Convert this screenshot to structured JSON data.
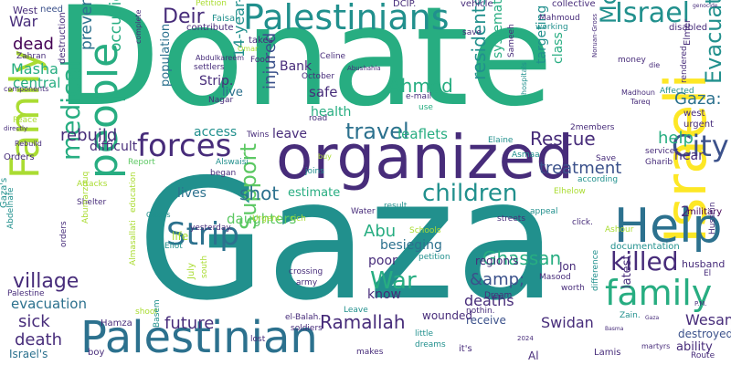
{
  "palette": {
    "darkPurple": "#440154",
    "purple": "#472c7a",
    "indigo": "#3b518b",
    "blue": "#2c718e",
    "teal": "#21908d",
    "green": "#27ad81",
    "lightGreen": "#5cc863",
    "lime": "#aadc32",
    "yellow": "#fde725"
  },
  "words": [
    {
      "text": "Gaza",
      "color": "teal"
    },
    {
      "text": "Donate",
      "color": "green"
    },
    {
      "text": "organized",
      "color": "purple"
    },
    {
      "text": "Israeli",
      "color": "yellow"
    },
    {
      "text": "Palestinian",
      "color": "blue"
    },
    {
      "text": "Palestinians",
      "color": "teal"
    },
    {
      "text": "people",
      "color": "green"
    },
    {
      "text": "Family",
      "color": "lime"
    },
    {
      "text": "Help",
      "color": "blue"
    },
    {
      "text": "forces",
      "color": "purple"
    },
    {
      "text": "Strip",
      "color": "blue"
    },
    {
      "text": "family",
      "color": "green"
    },
    {
      "text": "medical",
      "color": "green"
    },
    {
      "text": "killed",
      "color": "purple"
    },
    {
      "text": "Israel",
      "color": "teal"
    },
    {
      "text": "Mohammed",
      "color": "teal"
    },
    {
      "text": "children",
      "color": "teal"
    },
    {
      "text": "City",
      "color": "indigo"
    },
    {
      "text": "War",
      "color": "green"
    },
    {
      "text": "Support",
      "color": "lightGreen"
    },
    {
      "text": "travel",
      "color": "blue"
    },
    {
      "text": "Evacuate",
      "color": "teal"
    },
    {
      "text": "village",
      "color": "purple"
    },
    {
      "text": "Ghassan",
      "color": "green"
    },
    {
      "text": "Ramallah",
      "color": "purple"
    },
    {
      "text": "Rescue",
      "color": "purple"
    },
    {
      "text": "residents",
      "color": "teal"
    },
    {
      "text": "Ahmed",
      "color": "green"
    },
    {
      "text": "Deir",
      "color": "purple"
    },
    {
      "text": "sick",
      "color": "purple"
    },
    {
      "text": "death",
      "color": "purple"
    },
    {
      "text": "shot",
      "color": "blue"
    },
    {
      "text": "future",
      "color": "purple"
    },
    {
      "text": "Abu",
      "color": "green"
    },
    {
      "text": "treatment",
      "color": "indigo"
    },
    {
      "text": "help",
      "color": "green"
    },
    {
      "text": "injured",
      "color": "indigo"
    },
    {
      "text": "rebuild",
      "color": "purple"
    },
    {
      "text": "Gaza:",
      "color": "blue"
    },
    {
      "text": "dead",
      "color": "darkPurple"
    },
    {
      "text": "War",
      "color": "purple"
    },
    {
      "text": "preventing",
      "color": "blue"
    },
    {
      "text": "occupied",
      "color": "green"
    },
    {
      "text": "&amp;",
      "color": "indigo"
    },
    {
      "text": "Swidan",
      "color": "purple"
    },
    {
      "text": "Wesam",
      "color": "purple"
    },
    {
      "text": "evacuation",
      "color": "blue"
    },
    {
      "text": "Masha",
      "color": "green"
    },
    {
      "text": "central",
      "color": "green"
    },
    {
      "text": "14-year-old",
      "color": "teal"
    },
    {
      "text": "safe",
      "color": "purple"
    },
    {
      "text": "Bank",
      "color": "purple"
    },
    {
      "text": "leaflets",
      "color": "green"
    },
    {
      "text": "leave",
      "color": "purple"
    },
    {
      "text": "systematic",
      "color": "green"
    },
    {
      "text": "class",
      "color": "green"
    },
    {
      "text": "targeting",
      "color": "teal"
    },
    {
      "text": "near",
      "color": "purple"
    },
    {
      "text": "2",
      "color": "purple"
    },
    {
      "text": "deaths",
      "color": "purple"
    },
    {
      "text": "besieging",
      "color": "blue"
    },
    {
      "text": "poor",
      "color": "purple"
    },
    {
      "text": "know",
      "color": "purple"
    },
    {
      "text": "daughters",
      "color": "lightGreen"
    },
    {
      "text": "lives",
      "color": "blue"
    },
    {
      "text": "population",
      "color": "blue"
    },
    {
      "text": "difficult",
      "color": "purple"
    },
    {
      "text": "access",
      "color": "teal"
    },
    {
      "text": "Strip.",
      "color": "purple"
    },
    {
      "text": "live",
      "color": "blue"
    },
    {
      "text": "health",
      "color": "green"
    },
    {
      "text": "estimate",
      "color": "green"
    },
    {
      "text": "latest",
      "color": "purple"
    },
    {
      "text": "receive",
      "color": "indigo"
    },
    {
      "text": "wounded",
      "color": "purple"
    },
    {
      "text": "ability",
      "color": "purple"
    },
    {
      "text": "destroyed",
      "color": "indigo"
    },
    {
      "text": "region's",
      "color": "purple"
    },
    {
      "text": "Jon",
      "color": "purple"
    },
    {
      "text": "West",
      "color": "purple"
    },
    {
      "text": "Israel's",
      "color": "blue"
    },
    {
      "text": "boy",
      "color": "purple"
    },
    {
      "text": "Hamza",
      "color": "purple"
    },
    {
      "text": "it's",
      "color": "purple"
    },
    {
      "text": "Al",
      "color": "purple"
    },
    {
      "text": "Lamis",
      "color": "purple"
    },
    {
      "text": "documentation",
      "color": "teal"
    },
    {
      "text": "military",
      "color": "darkPurple"
    },
    {
      "text": "husband",
      "color": "purple"
    },
    {
      "text": "Elmer",
      "color": "purple"
    },
    {
      "text": "collective",
      "color": "purple"
    },
    {
      "text": "disabled",
      "color": "purple"
    },
    {
      "text": "vehicle",
      "color": "purple"
    },
    {
      "text": "Petition",
      "color": "lime"
    },
    {
      "text": "DCIP.",
      "color": "purple"
    },
    {
      "text": "need",
      "color": "indigo"
    },
    {
      "text": "Faisal",
      "color": "teal"
    },
    {
      "text": "contribute",
      "color": "purple"
    },
    {
      "text": "takes",
      "color": "purple"
    },
    {
      "text": "Celine",
      "color": "purple"
    },
    {
      "text": "October",
      "color": "purple"
    },
    {
      "text": "Food",
      "color": "purple"
    },
    {
      "text": "Mahmoud",
      "color": "purple"
    },
    {
      "text": "working",
      "color": "teal"
    },
    {
      "text": "Sameeh",
      "color": "purple"
    },
    {
      "text": "money",
      "color": "purple"
    },
    {
      "text": "die",
      "color": "purple"
    },
    {
      "text": "Madhoun",
      "color": "purple"
    },
    {
      "text": "Tareq",
      "color": "purple"
    },
    {
      "text": "Affected",
      "color": "teal"
    },
    {
      "text": "rendered",
      "color": "purple"
    },
    {
      "text": "west",
      "color": "purple"
    },
    {
      "text": "urgent",
      "color": "purple"
    },
    {
      "text": "services",
      "color": "purple"
    },
    {
      "text": "Gharib",
      "color": "purple"
    },
    {
      "text": "Hussein",
      "color": "purple"
    },
    {
      "text": "2members",
      "color": "purple"
    },
    {
      "text": "Elaine",
      "color": "teal"
    },
    {
      "text": "hospitals",
      "color": "teal"
    },
    {
      "text": "road",
      "color": "purple"
    },
    {
      "text": "use",
      "color": "green"
    },
    {
      "text": "e-mail",
      "color": "purple"
    },
    {
      "text": "Twins",
      "color": "purple"
    },
    {
      "text": "Report",
      "color": "lightGreen"
    },
    {
      "text": "Alswaisi",
      "color": "teal"
    },
    {
      "text": "began",
      "color": "purple"
    },
    {
      "text": "joins",
      "color": "teal"
    },
    {
      "text": "buy",
      "color": "lime"
    },
    {
      "text": "Asmaa",
      "color": "teal"
    },
    {
      "text": "Save",
      "color": "purple"
    },
    {
      "text": "according",
      "color": "teal"
    },
    {
      "text": "Ashour",
      "color": "lime"
    },
    {
      "text": "Elhelow",
      "color": "lime"
    },
    {
      "text": "appeal",
      "color": "teal"
    },
    {
      "text": "streets",
      "color": "purple"
    },
    {
      "text": "click.",
      "color": "purple"
    },
    {
      "text": "Schools",
      "color": "lime"
    },
    {
      "text": "result",
      "color": "teal"
    },
    {
      "text": "Water",
      "color": "purple"
    },
    {
      "text": "petition",
      "color": "teal"
    },
    {
      "text": "rich",
      "color": "lime"
    },
    {
      "text": "Urgent",
      "color": "lime"
    },
    {
      "text": "yesterday.",
      "color": "purple"
    },
    {
      "text": "life",
      "color": "lime"
    },
    {
      "text": "Eliot",
      "color": "teal"
    },
    {
      "text": "Shelter",
      "color": "purple"
    },
    {
      "text": "Attacks",
      "color": "lime"
    },
    {
      "text": "education",
      "color": "lime"
    },
    {
      "text": "Abumarzouq",
      "color": "lime"
    },
    {
      "text": "Almasallati",
      "color": "lime"
    },
    {
      "text": "July",
      "color": "lime"
    },
    {
      "text": "south",
      "color": "lime"
    },
    {
      "text": "army",
      "color": "purple"
    },
    {
      "text": "crossing",
      "color": "purple"
    },
    {
      "text": "shoot",
      "color": "lime"
    },
    {
      "text": "Leave",
      "color": "teal"
    },
    {
      "text": "el-Balah.",
      "color": "purple"
    },
    {
      "text": "soldiers",
      "color": "purple"
    },
    {
      "text": "Dream",
      "color": "purple"
    },
    {
      "text": "nothin.",
      "color": "purple"
    },
    {
      "text": "Zain.",
      "color": "teal"
    },
    {
      "text": "Masood",
      "color": "purple"
    },
    {
      "text": "worth",
      "color": "purple"
    },
    {
      "text": "dreams",
      "color": "teal"
    },
    {
      "text": "little",
      "color": "teal"
    },
    {
      "text": "makes",
      "color": "purple"
    },
    {
      "text": "lost",
      "color": "purple"
    },
    {
      "text": "Basem",
      "color": "teal"
    },
    {
      "text": "difference",
      "color": "teal"
    },
    {
      "text": "martyrs",
      "color": "purple"
    },
    {
      "text": "Route",
      "color": "purple"
    },
    {
      "text": "Palestine",
      "color": "purple"
    },
    {
      "text": "Orders",
      "color": "purple"
    },
    {
      "text": "Gaza's",
      "color": "teal"
    },
    {
      "text": "Abdelhafe",
      "color": "teal"
    },
    {
      "text": "Rebuild",
      "color": "purple"
    },
    {
      "text": "directly",
      "color": "purple"
    },
    {
      "text": "Peace",
      "color": "lime"
    },
    {
      "text": "components",
      "color": "purple"
    },
    {
      "text": "Zahran",
      "color": "purple"
    },
    {
      "text": "destruction",
      "color": "purple"
    },
    {
      "text": "complete",
      "color": "purple"
    },
    {
      "text": "Omar",
      "color": "lime"
    },
    {
      "text": "Abdulkareem",
      "color": "purple"
    },
    {
      "text": "settlers",
      "color": "purple"
    },
    {
      "text": "Nagar",
      "color": "purple"
    },
    {
      "text": "Abushahla",
      "color": "purple"
    },
    {
      "text": "save",
      "color": "purple"
    },
    {
      "text": "genocide",
      "color": "purple"
    },
    {
      "text": "Noruan-Gross",
      "color": "purple"
    },
    {
      "text": "Basma",
      "color": "purple"
    },
    {
      "text": "Gaza",
      "color": "purple"
    },
    {
      "text": "2024",
      "color": "purple"
    },
    {
      "text": "orders",
      "color": "purple"
    },
    {
      "text": "P.M.",
      "color": "purple"
    },
    {
      "text": "El",
      "color": "purple"
    },
    {
      "text": "Gaza's",
      "color": "teal"
    }
  ]
}
